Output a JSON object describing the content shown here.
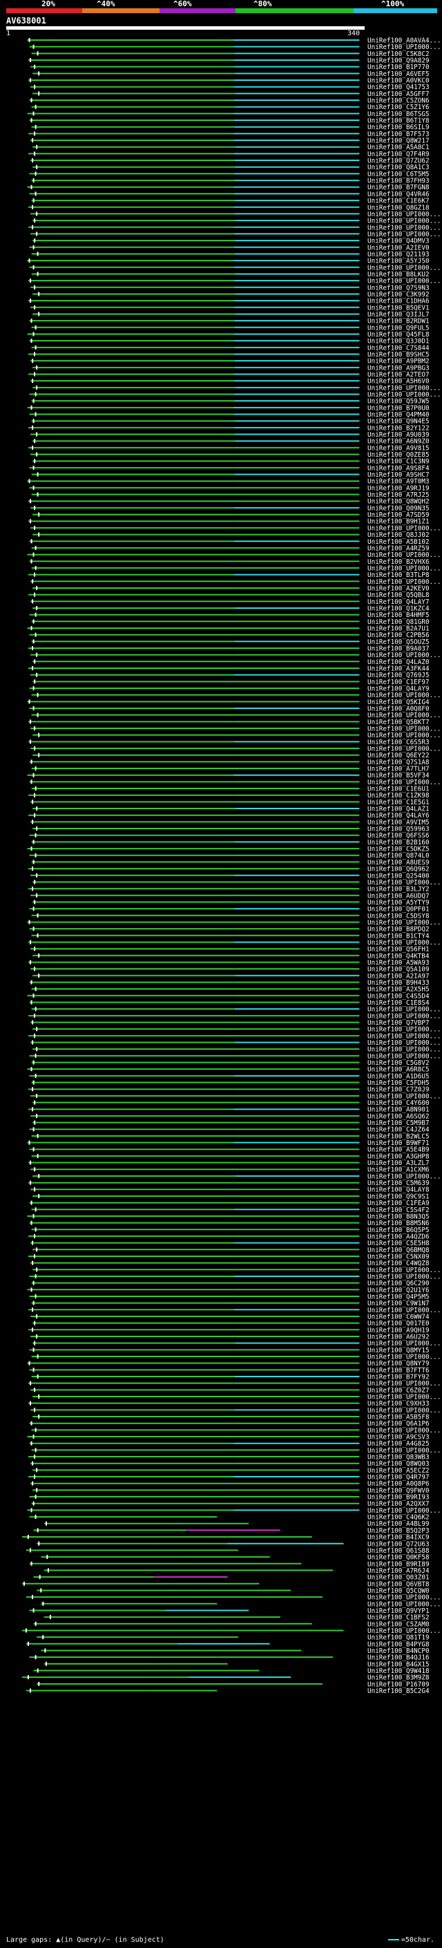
{
  "header": {
    "scale_labels": [
      "20%",
      "^40%",
      "^60%",
      "^80%",
      "^100%"
    ],
    "scale_colors": [
      "#e0202a",
      "#e07a20",
      "#a020c0",
      "#20c020",
      "#20c0e0"
    ],
    "query_id": "AV638001",
    "query_start": "1",
    "query_end": "340"
  },
  "footer": {
    "gaps_label": "Large gaps: ▲(in Query)/~ (in Subject)",
    "legend_label": "=50char."
  },
  "colors": {
    "high": "#33cc33",
    "top": "#33dddd",
    "magenta": "#cc33cc",
    "gray": "#888888"
  },
  "chart_data": {
    "type": "alignment-map",
    "query_length": 340,
    "hits": [
      {
        "id": "UniRef100_A0AVA4..."
      },
      {
        "id": "UniRef100_UPI000..."
      },
      {
        "id": "UniRef100_C5K8C2"
      },
      {
        "id": "UniRef100_Q9A829"
      },
      {
        "id": "UniRef100_B1P770"
      },
      {
        "id": "UniRef100_A6VEF5"
      },
      {
        "id": "UniRef100_A0VKC0"
      },
      {
        "id": "UniRef100_Q41753"
      },
      {
        "id": "UniRef100_A5GFF7"
      },
      {
        "id": "UniRef100_C5ZON6"
      },
      {
        "id": "UniRef100_C5Z1Y6"
      },
      {
        "id": "UniRef100_B6TSG5"
      },
      {
        "id": "UniRef100_B6T1Y8"
      },
      {
        "id": "UniRef100_B6SIL9"
      },
      {
        "id": "UniRef100_B7F573"
      },
      {
        "id": "UniRef100_Q8W217"
      },
      {
        "id": "UniRef100_A5A8C1"
      },
      {
        "id": "UniRef100_Q7F4R9"
      },
      {
        "id": "UniRef100_Q7ZU62"
      },
      {
        "id": "UniRef100_Q8A1C3"
      },
      {
        "id": "UniRef100_C6T5M5"
      },
      {
        "id": "UniRef100_B7FH93"
      },
      {
        "id": "UniRef100_B7FGN8"
      },
      {
        "id": "UniRef100_Q4VR46"
      },
      {
        "id": "UniRef100_C1E6K7"
      },
      {
        "id": "UniRef100_Q8GZ18"
      },
      {
        "id": "UniRef100_UPI000..."
      },
      {
        "id": "UniRef100_UPI000..."
      },
      {
        "id": "UniRef100_UPI000..."
      },
      {
        "id": "UniRef100_UPI000..."
      },
      {
        "id": "UniRef100_Q4DMV3"
      },
      {
        "id": "UniRef100_A2IEV0"
      },
      {
        "id": "UniRef100_Q21193"
      },
      {
        "id": "UniRef100_A5YJ50"
      },
      {
        "id": "UniRef100_UPI000..."
      },
      {
        "id": "UniRef100_B8LKU2"
      },
      {
        "id": "UniRef100_UPI000..."
      },
      {
        "id": "UniRef100_Q7S9N3"
      },
      {
        "id": "UniRef100_C3K992"
      },
      {
        "id": "UniRef100_C1DHA6"
      },
      {
        "id": "UniRef100_B5QEV1"
      },
      {
        "id": "UniRef100_Q3IJL7"
      },
      {
        "id": "UniRef100_B2RDW1"
      },
      {
        "id": "UniRef100_Q9FUL5"
      },
      {
        "id": "UniRef100_Q45FL8"
      },
      {
        "id": "UniRef100_Q3J0D1"
      },
      {
        "id": "UniRef100_C7S844"
      },
      {
        "id": "UniRef100_B9SHC5"
      },
      {
        "id": "UniRef100_A9PBM2"
      },
      {
        "id": "UniRef100_A9PBG3"
      },
      {
        "id": "UniRef100_A2TEO7"
      },
      {
        "id": "UniRef100_A5H6V0"
      },
      {
        "id": "UniRef100_UPI000..."
      },
      {
        "id": "UniRef100_UPI000..."
      },
      {
        "id": "UniRef100_Q59JW5"
      },
      {
        "id": "UniRef100_B7P0U0"
      },
      {
        "id": "UniRef100_Q4PM40"
      },
      {
        "id": "UniRef100_Q9N4E5"
      },
      {
        "id": "UniRef100_B2Y122"
      },
      {
        "id": "UniRef100_A9U039"
      },
      {
        "id": "UniRef100_A6N9Z0"
      },
      {
        "id": "UniRef100_A9V815"
      },
      {
        "id": "UniRef100_Q0ZE85"
      },
      {
        "id": "UniRef100_C1C3N9"
      },
      {
        "id": "UniRef100_A9S8F4"
      },
      {
        "id": "UniRef100_A9SHC7"
      },
      {
        "id": "UniRef100_A9T0M3"
      },
      {
        "id": "UniRef100_A9RJ19"
      },
      {
        "id": "UniRef100_A7RJ25"
      },
      {
        "id": "UniRef100_Q8WQH2"
      },
      {
        "id": "UniRef100_Q09N35"
      },
      {
        "id": "UniRef100_A7SD59"
      },
      {
        "id": "UniRef100_B9H1Z1"
      },
      {
        "id": "UniRef100_UPI000..."
      },
      {
        "id": "UniRef100_Q8JJ02"
      },
      {
        "id": "UniRef100_A5B102"
      },
      {
        "id": "UniRef100_A4RZ59"
      },
      {
        "id": "UniRef100_UPI000..."
      },
      {
        "id": "UniRef100_B2VHX6"
      },
      {
        "id": "UniRef100_UPI000..."
      },
      {
        "id": "UniRef100_B3TLP8"
      },
      {
        "id": "UniRef100_UPI000..."
      },
      {
        "id": "UniRef100_A2KEV0"
      },
      {
        "id": "UniRef100_Q5QBL8"
      },
      {
        "id": "UniRef100_Q4LAY7"
      },
      {
        "id": "UniRef100_Q1KZC4"
      },
      {
        "id": "UniRef100_B4HMF5"
      },
      {
        "id": "UniRef100_Q81GR0"
      },
      {
        "id": "UniRef100_B2A7U1"
      },
      {
        "id": "UniRef100_C2PB56"
      },
      {
        "id": "UniRef100_Q5OUZ5"
      },
      {
        "id": "UniRef100_B9A037"
      },
      {
        "id": "UniRef100_UPI000..."
      },
      {
        "id": "UniRef100_Q4LAZ0"
      },
      {
        "id": "UniRef100_A3FK44"
      },
      {
        "id": "UniRef100_Q769J5"
      },
      {
        "id": "UniRef100_C1EF97"
      },
      {
        "id": "UniRef100_Q4LAY9"
      },
      {
        "id": "UniRef100_UPI000..."
      },
      {
        "id": "UniRef100_Q5KIG4"
      },
      {
        "id": "UniRef100_A0Q8F0"
      },
      {
        "id": "UniRef100_UPI000..."
      },
      {
        "id": "UniRef100_Q5BKT7"
      },
      {
        "id": "UniRef100_UPI000..."
      },
      {
        "id": "UniRef100_UPI000..."
      },
      {
        "id": "UniRef100_C6S5R3"
      },
      {
        "id": "UniRef100_UPI000..."
      },
      {
        "id": "UniRef100_Q6EY22"
      },
      {
        "id": "UniRef100_Q7S1A8"
      },
      {
        "id": "UniRef100_A7TLH7"
      },
      {
        "id": "UniRef100_B5VF34"
      },
      {
        "id": "UniRef100_UPI000..."
      },
      {
        "id": "UniRef100_C1E6U1"
      },
      {
        "id": "UniRef100_C1ZK98"
      },
      {
        "id": "UniRef100_C1E5G1"
      },
      {
        "id": "UniRef100_Q4LAZ1"
      },
      {
        "id": "UniRef100_Q4LAY6"
      },
      {
        "id": "UniRef100_A9VIM5"
      },
      {
        "id": "UniRef100_Q59963"
      },
      {
        "id": "UniRef100_Q6FSS6"
      },
      {
        "id": "UniRef100_B2B160"
      },
      {
        "id": "UniRef100_C5DKZ5"
      },
      {
        "id": "UniRef100_Q874L0"
      },
      {
        "id": "UniRef100_A8UES9"
      },
      {
        "id": "UniRef100_Q6Q962"
      },
      {
        "id": "UniRef100_Q25400"
      },
      {
        "id": "UniRef100_UPI000..."
      },
      {
        "id": "UniRef100_B3LJY2"
      },
      {
        "id": "UniRef100_A6UDQ7"
      },
      {
        "id": "UniRef100_A5YTY9"
      },
      {
        "id": "UniRef100_Q0PF01"
      },
      {
        "id": "UniRef100_C5DSY8"
      },
      {
        "id": "UniRef100_UPI000..."
      },
      {
        "id": "UniRef100_B8PDQ2"
      },
      {
        "id": "UniRef100_B1CTY4"
      },
      {
        "id": "UniRef100_UPI000..."
      },
      {
        "id": "UniRef100_Q56FH1"
      },
      {
        "id": "UniRef100_Q4KTB4"
      },
      {
        "id": "UniRef100_A5WA93"
      },
      {
        "id": "UniRef100_Q5A109"
      },
      {
        "id": "UniRef100_A2IA97"
      },
      {
        "id": "UniRef100_B9H433"
      },
      {
        "id": "UniRef100_A2X5H5"
      },
      {
        "id": "UniRef100_C4S5D4"
      },
      {
        "id": "UniRef100_C1E8S4"
      },
      {
        "id": "UniRef100_UPI000..."
      },
      {
        "id": "UniRef100_UPI000..."
      },
      {
        "id": "UniRef100_Q7VBP7"
      },
      {
        "id": "UniRef100_UPI000..."
      },
      {
        "id": "UniRef100_UPI000..."
      },
      {
        "id": "UniRef100_UPI000..."
      },
      {
        "id": "UniRef100_UPI000..."
      },
      {
        "id": "UniRef100_UPI000..."
      },
      {
        "id": "UniRef100_C5G8V2"
      },
      {
        "id": "UniRef100_A6R8C5"
      },
      {
        "id": "UniRef100_A1D6U5"
      },
      {
        "id": "UniRef100_C5FDH5"
      },
      {
        "id": "UniRef100_C7Z0J9"
      },
      {
        "id": "UniRef100_UPI000..."
      },
      {
        "id": "UniRef100_C4Y600"
      },
      {
        "id": "UniRef100_A8N901"
      },
      {
        "id": "UniRef100_A6SQ62"
      },
      {
        "id": "UniRef100_C5M9B7"
      },
      {
        "id": "UniRef100_C4JZ64"
      },
      {
        "id": "UniRef100_B2WLC5"
      },
      {
        "id": "UniRef100_B9WF71"
      },
      {
        "id": "UniRef100_A5E4B9"
      },
      {
        "id": "UniRef100_A3GHP8"
      },
      {
        "id": "UniRef100_A3LZL7"
      },
      {
        "id": "UniRef100_A1CXM6"
      },
      {
        "id": "UniRef100_UPI000..."
      },
      {
        "id": "UniRef100_C5M639"
      },
      {
        "id": "UniRef100_Q4LAY8"
      },
      {
        "id": "UniRef100_Q9C9S1"
      },
      {
        "id": "UniRef100_C1FEA9"
      },
      {
        "id": "UniRef100_C5S4F2"
      },
      {
        "id": "UniRef100_B8N3Q5"
      },
      {
        "id": "UniRef100_B8M5N6"
      },
      {
        "id": "UniRef100_B6Q5P5"
      },
      {
        "id": "UniRef100_A4QZD6"
      },
      {
        "id": "UniRef100_C5E5H8"
      },
      {
        "id": "UniRef100_Q6BMQ8"
      },
      {
        "id": "UniRef100_C5NX09"
      },
      {
        "id": "UniRef100_C4WQZ8"
      },
      {
        "id": "UniRef100_UPI000..."
      },
      {
        "id": "UniRef100_UPI000..."
      },
      {
        "id": "UniRef100_Q6C290"
      },
      {
        "id": "UniRef100_Q2U1Y6"
      },
      {
        "id": "UniRef100_Q4P5M5"
      },
      {
        "id": "UniRef100_C9W1N7"
      },
      {
        "id": "UniRef100_UPI000..."
      },
      {
        "id": "UniRef100_C6WW74"
      },
      {
        "id": "UniRef100_Q017E0"
      },
      {
        "id": "UniRef100_A9QH19"
      },
      {
        "id": "UniRef100_A6U292"
      },
      {
        "id": "UniRef100_UPI000..."
      },
      {
        "id": "UniRef100_Q8MY15"
      },
      {
        "id": "UniRef100_UPI000..."
      },
      {
        "id": "UniRef100_Q8NY79"
      },
      {
        "id": "UniRef100_B7FTT6"
      },
      {
        "id": "UniRef100_B7FY92"
      },
      {
        "id": "UniRef100_UPI000..."
      },
      {
        "id": "UniRef100_C6Z0Z7"
      },
      {
        "id": "UniRef100_UPI000..."
      },
      {
        "id": "UniRef100_C9XH33"
      },
      {
        "id": "UniRef100_UPI000..."
      },
      {
        "id": "UniRef100_A5B5F8"
      },
      {
        "id": "UniRef100_Q6A1P6"
      },
      {
        "id": "UniRef100_UPI000..."
      },
      {
        "id": "UniRef100_A9CSV3"
      },
      {
        "id": "UniRef100_A4G825"
      },
      {
        "id": "UniRef100_UPI000..."
      },
      {
        "id": "UniRef100_Q83WB3"
      },
      {
        "id": "UniRef100_Q8WQ03"
      },
      {
        "id": "UniRef100_A5ECZ2"
      },
      {
        "id": "UniRef100_Q4R797"
      },
      {
        "id": "UniRef100_A0Q8P6"
      },
      {
        "id": "UniRef100_Q9FWV0"
      },
      {
        "id": "UniRef100_B9RI93"
      },
      {
        "id": "UniRef100_A2QXX7"
      },
      {
        "id": "UniRef100_UPI000..."
      },
      {
        "id": "UniRef100_C4Q6K2"
      },
      {
        "id": "UniRef100_A4BL99"
      },
      {
        "id": "UniRef100_B5Q2P3"
      },
      {
        "id": "UniRef100_B4IXC9"
      },
      {
        "id": "UniRef100_Q72U63"
      },
      {
        "id": "UniRef100_Q61S88"
      },
      {
        "id": "UniRef100_Q0KF58"
      },
      {
        "id": "UniRef100_B9RI89"
      },
      {
        "id": "UniRef100_A7R6J4"
      },
      {
        "id": "UniRef100_Q03Z01"
      },
      {
        "id": "UniRef100_Q6VBT8"
      },
      {
        "id": "UniRef100_Q5CQW0"
      },
      {
        "id": "UniRef100_UPI000..."
      },
      {
        "id": "UniRef100_UPI000..."
      },
      {
        "id": "UniRef100_Q9VYP1"
      },
      {
        "id": "UniRef100_C1BFS2"
      },
      {
        "id": "UniRef100_C5ZAM0"
      },
      {
        "id": "UniRef100_UPI000..."
      },
      {
        "id": "UniRef100_Q81T19"
      },
      {
        "id": "UniRef100_B4PYG8"
      },
      {
        "id": "UniRef100_B4NCP0"
      },
      {
        "id": "UniRef100_B4QJ16"
      },
      {
        "id": "UniRef100_B4GX15"
      },
      {
        "id": "UniRef100_Q9W418"
      },
      {
        "id": "UniRef100_B3M9Z8"
      },
      {
        "id": "UniRef100_P16709"
      },
      {
        "id": "UniRef100_B5C2G4"
      }
    ]
  }
}
